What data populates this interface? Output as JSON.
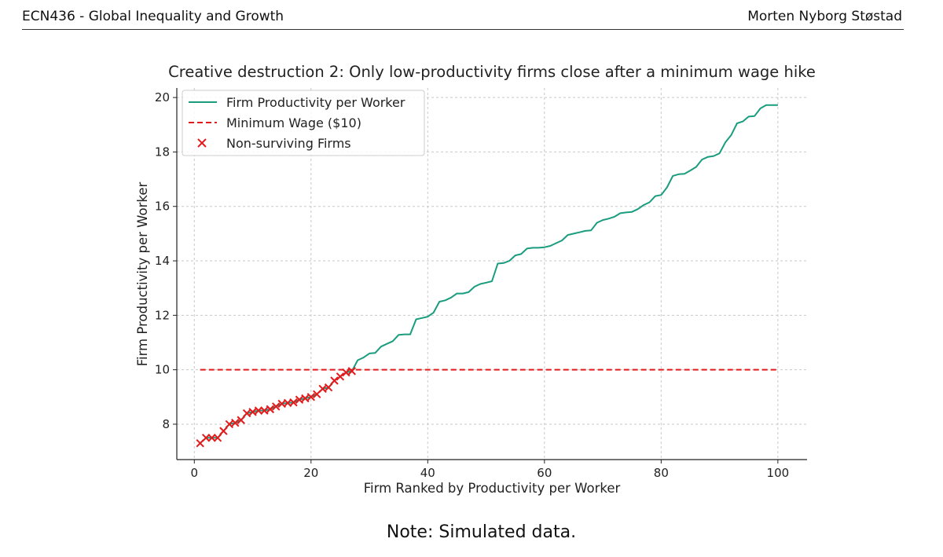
{
  "header": {
    "course": "ECN436 - Global Inequality and Growth",
    "author": "Morten Nyborg Støstad"
  },
  "footer": {
    "note": "Note: Simulated data."
  },
  "colors": {
    "line": "#1a9c7f",
    "wage": "#e41a1c",
    "cross": "#e41a1c",
    "grid": "#c8c8c8"
  },
  "chart_data": {
    "type": "line",
    "title": "Creative destruction 2: Only low-productivity firms close after a minimum wage hike",
    "xlabel": "Firm Ranked by Productivity per Worker",
    "ylabel": "Firm Productivity per Worker",
    "xlim": [
      -3,
      105
    ],
    "ylim": [
      6.7,
      20.35
    ],
    "xticks": [
      0,
      20,
      40,
      60,
      80,
      100
    ],
    "yticks": [
      8,
      10,
      12,
      14,
      16,
      18,
      20
    ],
    "grid": true,
    "legend_position": "upper-left",
    "series": [
      {
        "name": "Firm Productivity per Worker",
        "kind": "line",
        "x": [
          1,
          2,
          3,
          4,
          5,
          6,
          7,
          8,
          9,
          10,
          11,
          12,
          13,
          14,
          15,
          16,
          17,
          18,
          19,
          20,
          21,
          22,
          23,
          24,
          25,
          26,
          27,
          28,
          29,
          30,
          31,
          32,
          33,
          34,
          35,
          36,
          37,
          38,
          39,
          40,
          41,
          42,
          43,
          44,
          45,
          46,
          47,
          48,
          49,
          50,
          51,
          52,
          53,
          54,
          55,
          56,
          57,
          58,
          59,
          60,
          61,
          62,
          63,
          64,
          65,
          66,
          67,
          68,
          69,
          70,
          71,
          72,
          73,
          74,
          75,
          76,
          77,
          78,
          79,
          80,
          81,
          82,
          83,
          84,
          85,
          86,
          87,
          88,
          89,
          90,
          91,
          92,
          93,
          94,
          95,
          96,
          97,
          98,
          99,
          100
        ],
        "y": [
          7.3,
          7.5,
          7.5,
          7.5,
          7.75,
          8.0,
          8.05,
          8.15,
          8.4,
          8.45,
          8.5,
          8.5,
          8.55,
          8.65,
          8.75,
          8.78,
          8.8,
          8.9,
          8.95,
          9.0,
          9.1,
          9.3,
          9.35,
          9.6,
          9.75,
          9.9,
          9.95,
          10.35,
          10.45,
          10.6,
          10.62,
          10.85,
          10.95,
          11.05,
          11.28,
          11.3,
          11.3,
          11.85,
          11.9,
          11.95,
          12.1,
          12.5,
          12.55,
          12.65,
          12.8,
          12.8,
          12.85,
          13.05,
          13.15,
          13.2,
          13.25,
          13.9,
          13.92,
          14.0,
          14.2,
          14.25,
          14.45,
          14.48,
          14.48,
          14.5,
          14.55,
          14.65,
          14.75,
          14.95,
          15.0,
          15.05,
          15.1,
          15.12,
          15.4,
          15.5,
          15.55,
          15.62,
          15.75,
          15.78,
          15.8,
          15.9,
          16.05,
          16.15,
          16.38,
          16.42,
          16.7,
          17.12,
          17.18,
          17.2,
          17.32,
          17.45,
          17.72,
          17.82,
          17.85,
          17.95,
          18.35,
          18.62,
          19.05,
          19.12,
          19.3,
          19.32,
          19.6,
          19.72,
          19.72,
          19.72
        ]
      },
      {
        "name": "Minimum Wage ($10)",
        "kind": "hline",
        "x": [
          1,
          100
        ],
        "y": [
          10,
          10
        ]
      },
      {
        "name": "Non-surviving Firms",
        "kind": "scatter",
        "marker": "x",
        "x": [
          1,
          2,
          3,
          4,
          5,
          6,
          7,
          8,
          9,
          10,
          11,
          12,
          13,
          14,
          15,
          16,
          17,
          18,
          19,
          20,
          21,
          22,
          23,
          24,
          25,
          26,
          27
        ],
        "y": [
          7.3,
          7.5,
          7.5,
          7.5,
          7.75,
          8.0,
          8.05,
          8.15,
          8.4,
          8.45,
          8.5,
          8.5,
          8.55,
          8.65,
          8.75,
          8.78,
          8.8,
          8.9,
          8.95,
          9.0,
          9.1,
          9.3,
          9.35,
          9.6,
          9.75,
          9.9,
          9.95
        ]
      }
    ]
  }
}
